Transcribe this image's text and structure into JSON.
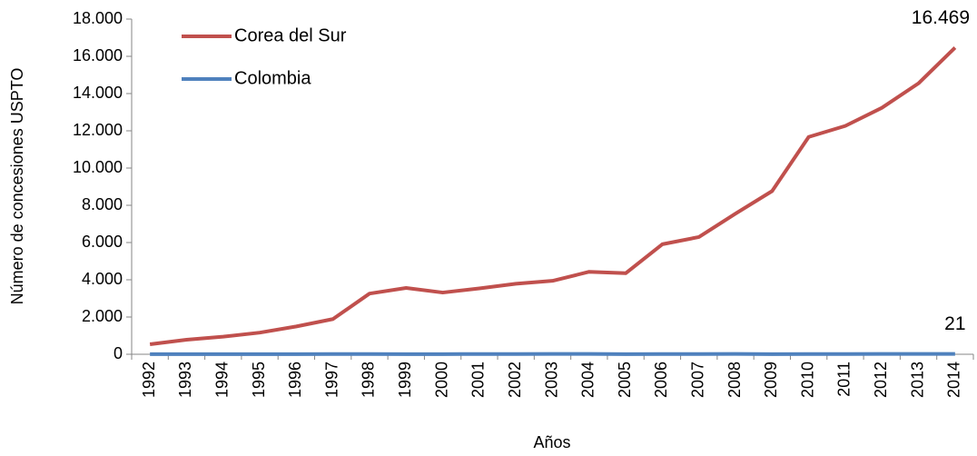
{
  "chart_data": {
    "type": "line",
    "y_label": "Número de concesiones USPTO",
    "x_label": "Años",
    "categories": [
      "1992",
      "1993",
      "1994",
      "1995",
      "1996",
      "1997",
      "1998",
      "1999",
      "2000",
      "2001",
      "2002",
      "2003",
      "2004",
      "2005",
      "2006",
      "2007",
      "2008",
      "2009",
      "2010",
      "2011",
      "2012",
      "2013",
      "2014"
    ],
    "series": [
      {
        "name": "Corea del Sur",
        "color": "#c0504d",
        "values": [
          538,
          779,
          943,
          1161,
          1493,
          1891,
          3259,
          3562,
          3314,
          3538,
          3786,
          3944,
          4428,
          4351,
          5908,
          6295,
          7549,
          8762,
          11671,
          12262,
          13233,
          14548,
          16469
        ],
        "value_labels": [
          null,
          null,
          null,
          null,
          null,
          null,
          null,
          null,
          null,
          null,
          null,
          null,
          null,
          null,
          null,
          null,
          null,
          null,
          null,
          null,
          null,
          null,
          "16.469"
        ]
      },
      {
        "name": "Colombia",
        "color": "#4f81bd",
        "values": [
          6,
          7,
          5,
          6,
          8,
          10,
          12,
          9,
          8,
          14,
          10,
          16,
          18,
          8,
          10,
          12,
          16,
          9,
          10,
          12,
          19,
          20,
          21
        ],
        "value_labels": [
          null,
          null,
          null,
          null,
          null,
          null,
          null,
          null,
          null,
          null,
          null,
          null,
          null,
          null,
          null,
          null,
          null,
          null,
          null,
          null,
          null,
          null,
          "21"
        ]
      }
    ],
    "ylim": [
      0,
      18000
    ],
    "yticks": [
      0,
      {
        "value": 2000,
        "label": "2.000"
      },
      {
        "value": 4000,
        "label": "4.000"
      },
      {
        "value": 6000,
        "label": "6.000"
      },
      {
        "value": 8000,
        "label": "8.000"
      },
      {
        "value": 10000,
        "label": "10.000"
      },
      {
        "value": 12000,
        "label": "12.000"
      },
      {
        "value": 14000,
        "label": "14.000"
      },
      {
        "value": 16000,
        "label": "16.000"
      },
      {
        "value": 18000,
        "label": "18.000"
      }
    ],
    "grid": false,
    "legend": "upper left"
  }
}
